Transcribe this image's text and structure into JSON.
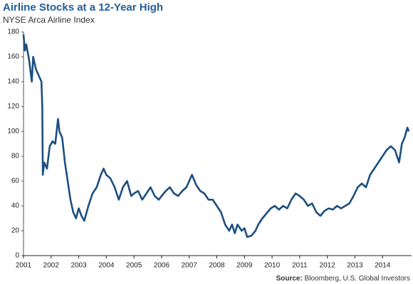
{
  "chart_data": {
    "type": "line",
    "title": "Airline Stocks at a 12-Year High",
    "subtitle": "NYSE Arca Airline Index",
    "source_label": "Source:",
    "source": "Bloomberg, U.S. Global Investors",
    "xlim": [
      2001,
      2015
    ],
    "xticks": [
      2001,
      2002,
      2003,
      2004,
      2005,
      2006,
      2007,
      2008,
      2009,
      2010,
      2011,
      2012,
      2013,
      2014
    ],
    "ylim": [
      0,
      180
    ],
    "yticks": [
      0,
      20,
      40,
      60,
      80,
      100,
      120,
      140,
      160,
      180
    ],
    "grid": false,
    "series": [
      {
        "name": "NYSE Arca Airline Index",
        "color": "#1d4f80",
        "x": [
          2001.0,
          2001.05,
          2001.1,
          2001.2,
          2001.3,
          2001.35,
          2001.45,
          2001.55,
          2001.65,
          2001.68,
          2001.7,
          2001.75,
          2001.85,
          2001.95,
          2002.05,
          2002.15,
          2002.25,
          2002.3,
          2002.4,
          2002.5,
          2002.6,
          2002.7,
          2002.8,
          2002.9,
          2003.0,
          2003.1,
          2003.2,
          2003.35,
          2003.5,
          2003.65,
          2003.8,
          2003.9,
          2004.0,
          2004.15,
          2004.3,
          2004.45,
          2004.6,
          2004.75,
          2004.9,
          2005.0,
          2005.15,
          2005.3,
          2005.45,
          2005.6,
          2005.75,
          2005.9,
          2006.0,
          2006.15,
          2006.3,
          2006.45,
          2006.6,
          2006.75,
          2006.9,
          2007.0,
          2007.1,
          2007.25,
          2007.4,
          2007.55,
          2007.7,
          2007.85,
          2008.0,
          2008.15,
          2008.3,
          2008.45,
          2008.55,
          2008.65,
          2008.75,
          2008.9,
          2009.0,
          2009.1,
          2009.25,
          2009.4,
          2009.5,
          2009.65,
          2009.8,
          2009.95,
          2010.1,
          2010.25,
          2010.4,
          2010.55,
          2010.7,
          2010.85,
          2011.0,
          2011.15,
          2011.3,
          2011.45,
          2011.6,
          2011.75,
          2011.9,
          2012.05,
          2012.2,
          2012.35,
          2012.5,
          2012.65,
          2012.8,
          2012.95,
          2013.1,
          2013.25,
          2013.4,
          2013.55,
          2013.7,
          2013.85,
          2014.0,
          2014.15,
          2014.3,
          2014.45,
          2014.6,
          2014.7,
          2014.8,
          2014.9,
          2014.95
        ],
        "values": [
          178,
          165,
          170,
          158,
          140,
          160,
          150,
          145,
          140,
          120,
          65,
          75,
          70,
          88,
          92,
          90,
          110,
          100,
          95,
          75,
          60,
          45,
          35,
          30,
          38,
          32,
          28,
          40,
          50,
          55,
          65,
          70,
          65,
          62,
          55,
          45,
          55,
          60,
          48,
          50,
          52,
          45,
          50,
          55,
          48,
          45,
          48,
          52,
          55,
          50,
          48,
          52,
          55,
          60,
          65,
          57,
          52,
          50,
          45,
          45,
          40,
          35,
          25,
          20,
          25,
          18,
          25,
          20,
          22,
          15,
          16,
          20,
          25,
          30,
          34,
          38,
          40,
          37,
          40,
          38,
          45,
          50,
          48,
          45,
          40,
          42,
          35,
          32,
          36,
          38,
          37,
          40,
          38,
          40,
          42,
          48,
          55,
          58,
          55,
          65,
          70,
          75,
          80,
          85,
          88,
          85,
          75,
          90,
          95,
          103,
          100
        ]
      }
    ]
  }
}
